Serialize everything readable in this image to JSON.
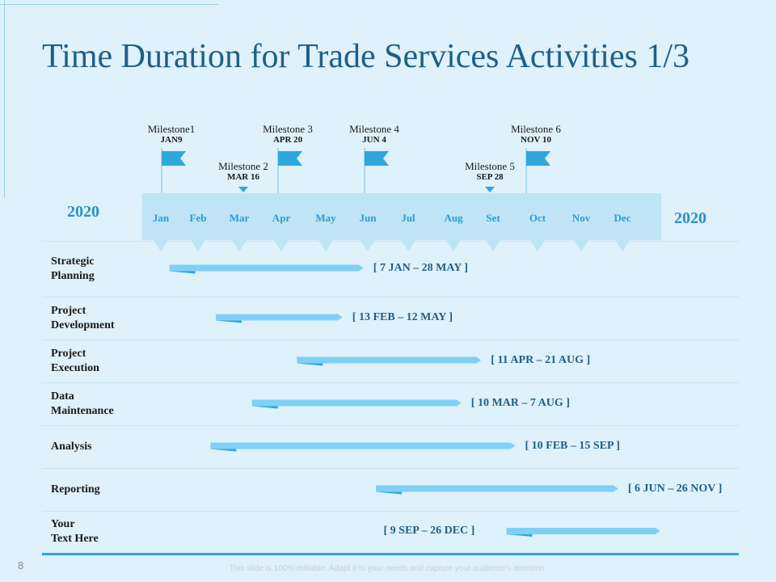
{
  "title": "Time Duration for Trade Services Activities 1/3",
  "year_left": "2020",
  "year_right": "2020",
  "months": [
    "Jan",
    "Feb",
    "Mar",
    "Apr",
    "May",
    "Jun",
    "Jul",
    "Aug",
    "Set",
    "Oct",
    "Nov",
    "Dec"
  ],
  "milestones": [
    {
      "label": "Milestone1",
      "date": "JAN9",
      "marker": "flag"
    },
    {
      "label": "Milestone 2",
      "date": "MAR 16",
      "marker": "triangle"
    },
    {
      "label": "Milestone 3",
      "date": "APR 20",
      "marker": "flag"
    },
    {
      "label": "Milestone 4",
      "date": "JUN 4",
      "marker": "flag"
    },
    {
      "label": "Milestone 5",
      "date": "SEP 28",
      "marker": "triangle"
    },
    {
      "label": "Milestone 6",
      "date": "NOV 10",
      "marker": "flag"
    }
  ],
  "activities": [
    {
      "line1": "Strategic",
      "line2": "Planning",
      "range": "[ 7 JAN – 28 MAY ]",
      "start_month": 0.23,
      "end_month": 4.9
    },
    {
      "line1": "Project",
      "line2": "Development",
      "range": "[ 13 FEB – 12 MAY ]",
      "start_month": 1.43,
      "end_month": 4.4
    },
    {
      "line1": "Project",
      "line2": "Execution",
      "range": "[ 11 APR – 21 AUG ]",
      "start_month": 3.35,
      "end_month": 7.7
    },
    {
      "line1": "Data",
      "line2": "Maintenance",
      "range": "[ 10 MAR – 7 AUG ]",
      "start_month": 2.3,
      "end_month": 7.2
    },
    {
      "line1": "Analysis",
      "line2": "",
      "range": "[ 10 FEB – 15 SEP ]",
      "start_month": 1.3,
      "end_month": 8.5
    },
    {
      "line1": "Reporting",
      "line2": "",
      "range": "[ 6 JUN – 26 NOV ]",
      "start_month": 5.2,
      "end_month": 10.9
    },
    {
      "line1": "Your",
      "line2": "Text Here",
      "range": "[ 9 SEP – 26 DEC ]",
      "start_month": 8.3,
      "end_month": 11.9
    }
  ],
  "page_number": "8",
  "footer": "This slide is 100% editable. Adapt it to your needs and capture your audience's attention.",
  "colors": {
    "accent": "#2ea7dc",
    "bar": "#7fd0f5",
    "band": "#bfe4f6",
    "title": "#1f5f86",
    "background": "#dff1fb"
  }
}
